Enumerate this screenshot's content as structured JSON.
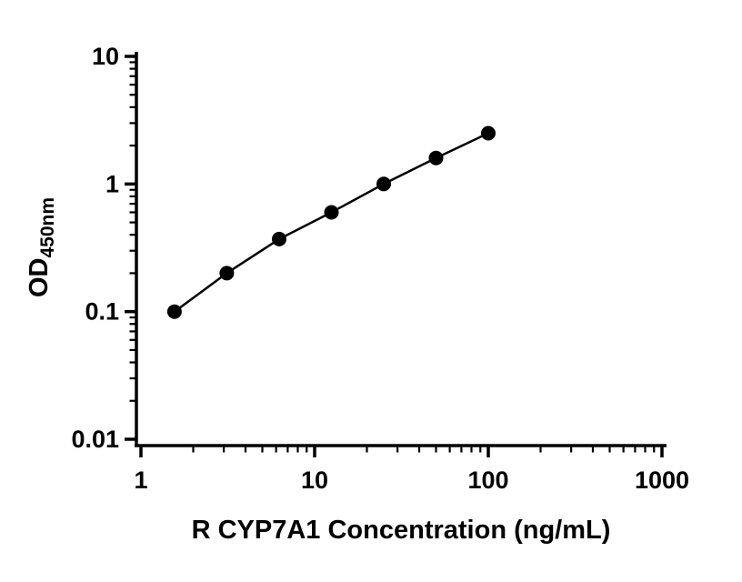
{
  "chart_data": {
    "type": "scatter",
    "title": "",
    "xlabel": "R CYP7A1 Concentration (ng/mL)",
    "ylabel_main": "OD",
    "ylabel_sub": "450nm",
    "x_scale": "log",
    "y_scale": "log",
    "xlim": [
      1,
      1000
    ],
    "ylim": [
      0.01,
      10
    ],
    "x_ticks": [
      1,
      10,
      100,
      1000
    ],
    "x_tick_labels": [
      "1",
      "10",
      "100",
      "1000"
    ],
    "y_ticks": [
      0.01,
      0.1,
      1,
      10
    ],
    "y_tick_labels": [
      "0.01",
      "0.1",
      "1",
      "10"
    ],
    "grid": false,
    "legend": null,
    "marker_color": "#000000",
    "line_color": "#000000",
    "points": {
      "x": [
        1.56,
        3.12,
        6.25,
        12.5,
        25,
        50,
        100
      ],
      "y": [
        0.1,
        0.2,
        0.37,
        0.6,
        1.0,
        1.6,
        2.5
      ]
    }
  }
}
